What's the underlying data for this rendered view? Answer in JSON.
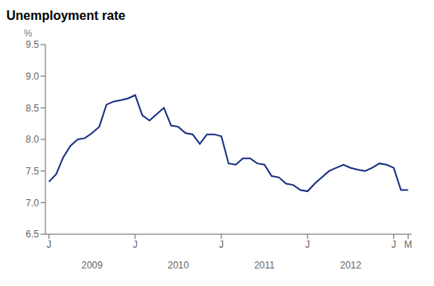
{
  "chart_data": {
    "type": "line",
    "title": "Unemployment rate",
    "ylabel": "%",
    "color": "#1a3080",
    "grid": false,
    "x": [
      0,
      1,
      2,
      3,
      4,
      5,
      6,
      7,
      8,
      9,
      10,
      11,
      12,
      13,
      14,
      15,
      16,
      17,
      18,
      19,
      20,
      21,
      22,
      23,
      24,
      25,
      26,
      27,
      28,
      29,
      30,
      31,
      32,
      33,
      34,
      35,
      36,
      37,
      38,
      39,
      40,
      41,
      42,
      43,
      44,
      45,
      46,
      47,
      48,
      49,
      50
    ],
    "values": [
      7.33,
      7.45,
      7.72,
      7.9,
      8.0,
      8.02,
      8.1,
      8.2,
      8.55,
      8.6,
      8.62,
      8.65,
      8.7,
      8.38,
      8.3,
      8.4,
      8.5,
      8.22,
      8.2,
      8.1,
      8.08,
      7.93,
      8.08,
      8.08,
      8.05,
      7.62,
      7.6,
      7.7,
      7.7,
      7.62,
      7.6,
      7.42,
      7.4,
      7.3,
      7.28,
      7.2,
      7.18,
      7.3,
      7.4,
      7.5,
      7.55,
      7.6,
      7.55,
      7.52,
      7.5,
      7.55,
      7.62,
      7.6,
      7.55,
      7.2,
      7.2
    ],
    "xlim": [
      -0.5,
      50.5
    ],
    "xticks": [
      {
        "value": 0,
        "label": "J"
      },
      {
        "value": 12,
        "label": "J"
      },
      {
        "value": 24,
        "label": "J"
      },
      {
        "value": 36,
        "label": "J"
      },
      {
        "value": 48,
        "label": "J"
      },
      {
        "value": 50,
        "label": "M"
      }
    ],
    "ylim": [
      6.5,
      9.5
    ],
    "yticks": [
      6.5,
      {
        "value": 7,
        "label": "7.0"
      },
      7.5,
      {
        "value": 8,
        "label": "8.0"
      },
      8.5,
      {
        "value": 9,
        "label": "9.0"
      },
      9.5
    ],
    "annotations": [
      {
        "x": 6,
        "text": "2009"
      },
      {
        "x": 18,
        "text": "2010"
      },
      {
        "x": 30,
        "text": "2011"
      },
      {
        "x": 42,
        "text": "2012"
      }
    ]
  }
}
